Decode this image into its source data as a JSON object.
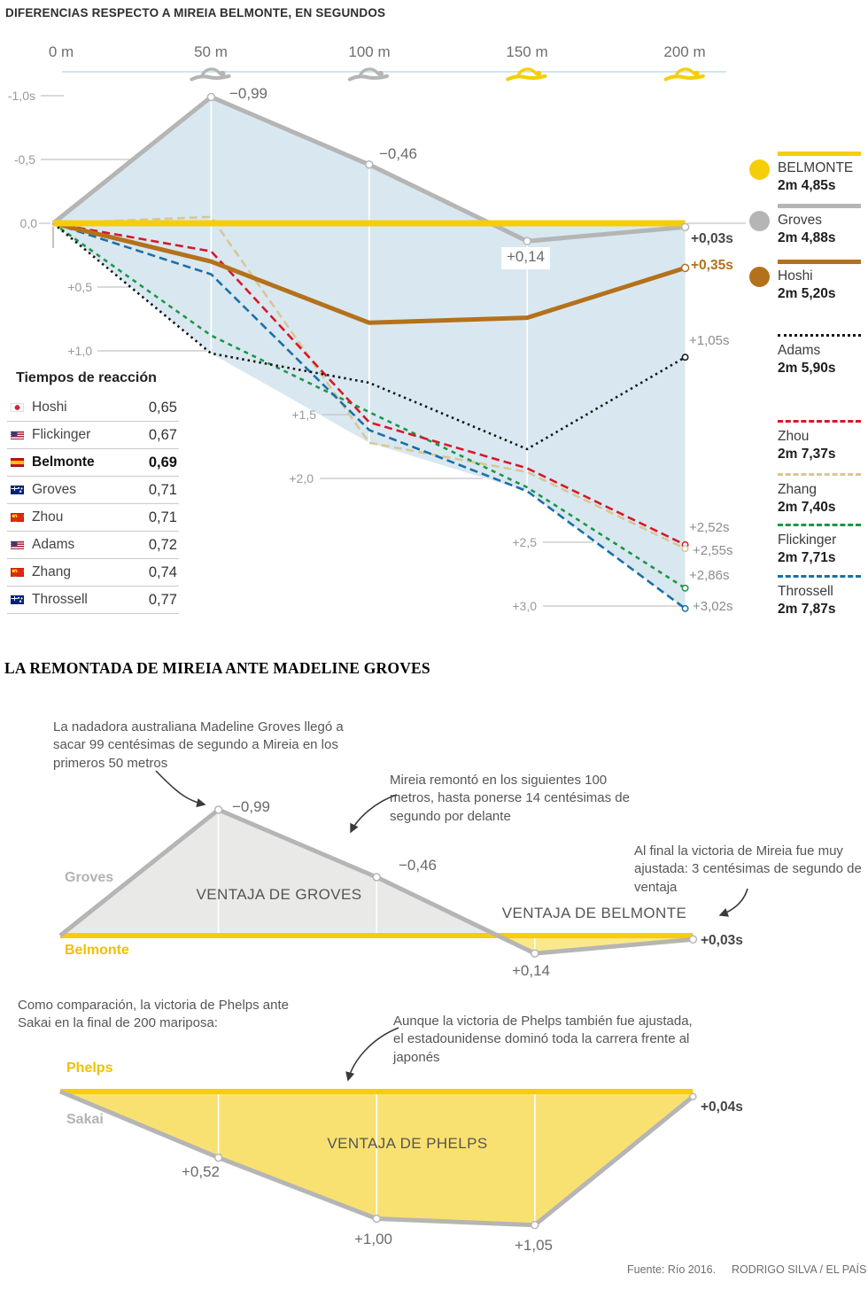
{
  "colors": {
    "yellow": "#f5ce0b",
    "gray": "#b5b5b5",
    "brown": "#b4711c",
    "black": "#161616",
    "red": "#d7182a",
    "tan": "#d8c795",
    "green": "#1e9648",
    "blue": "#1a6fa8",
    "area_blue": "#d9e8f0",
    "area_gray": "#e9e9e7",
    "area_yellow_light": "#fbe88d",
    "area_yellow": "#f9e171",
    "waterline": "#cfe4ee",
    "axis_gray": "#c3c3c3",
    "grid_white": "#ffffff",
    "arrow": "#3a3a3a"
  },
  "icons": {
    "swimmer_gray_positions": [
      "50 m",
      "100 m"
    ],
    "swimmer_yellow_positions": [
      "150 m",
      "200 m"
    ]
  },
  "chart_data": [
    {
      "type": "line",
      "title": "DIFERENCIAS RESPECTO A MIREIA BELMONTE, EN SEGUNDOS",
      "x_labels": [
        "0 m",
        "50 m",
        "100 m",
        "150 m",
        "200 m"
      ],
      "x_values_m": [
        0,
        50,
        100,
        150,
        200
      ],
      "y_unit": "segundos respecto a Belmonte (negativo = por delante)",
      "ylim": [
        -1.0,
        3.0
      ],
      "y_ticks": [
        {
          "v": -1.0,
          "label": "-1,0s"
        },
        {
          "v": -0.5,
          "label": "-0,5"
        },
        {
          "v": 0.0,
          "label": "0,0"
        },
        {
          "v": 0.5,
          "label": "+0,5"
        },
        {
          "v": 1.0,
          "label": "+1,0"
        },
        {
          "v": 1.5,
          "label": "+1,5"
        },
        {
          "v": 2.0,
          "label": "+2,0"
        },
        {
          "v": 2.5,
          "label": "+2,5"
        },
        {
          "v": 3.0,
          "label": "+3,0"
        }
      ],
      "series": [
        {
          "name": "Belmonte",
          "legend_name": "BELMONTE",
          "final_time": "2m 4,85s",
          "color": "#f5ce0b",
          "line": "solid-thick",
          "swatch": "bar",
          "values": [
            0,
            0,
            0,
            0,
            0
          ],
          "end_label": ""
        },
        {
          "name": "Groves",
          "legend_name": "Groves",
          "final_time": "2m 4,88s",
          "color": "#b5b5b5",
          "line": "solid",
          "swatch": "bar",
          "values": [
            0,
            -0.99,
            -0.46,
            0.14,
            0.03
          ],
          "end_label": "+0,03s",
          "point_labels": [
            "",
            "−0,99",
            "−0,46",
            "+0,14",
            ""
          ]
        },
        {
          "name": "Hoshi",
          "legend_name": "Hoshi",
          "final_time": "2m 5,20s",
          "color": "#b4711c",
          "line": "solid",
          "swatch": "bar",
          "values": [
            0,
            0.3,
            0.78,
            0.74,
            0.35
          ],
          "end_label": "+0,35s"
        },
        {
          "name": "Adams",
          "legend_name": "Adams",
          "final_time": "2m 5,90s",
          "color": "#161616",
          "line": "dotted",
          "swatch": "dot",
          "values": [
            0,
            1.02,
            1.25,
            1.77,
            1.05
          ],
          "end_label": "+1,05s"
        },
        {
          "name": "Zhou",
          "legend_name": "Zhou",
          "final_time": "2m 7,37s",
          "color": "#d7182a",
          "line": "dashed",
          "swatch": "dash",
          "values": [
            0,
            0.22,
            1.56,
            1.92,
            2.52
          ],
          "end_label": "+2,52s"
        },
        {
          "name": "Zhang",
          "legend_name": "Zhang",
          "final_time": "2m 7,40s",
          "color": "#d8c795",
          "line": "dashed",
          "swatch": "dash",
          "values": [
            0,
            -0.05,
            1.72,
            1.95,
            2.55
          ],
          "end_label": "+2,55s"
        },
        {
          "name": "Flickinger",
          "legend_name": "Flickinger",
          "final_time": "2m 7,71s",
          "color": "#1e9648",
          "line": "dashed",
          "swatch": "dash",
          "values": [
            0,
            0.88,
            1.48,
            2.07,
            2.86
          ],
          "end_label": "+2,86s"
        },
        {
          "name": "Throssell",
          "legend_name": "Throssell",
          "final_time": "2m 7,87s",
          "color": "#1a6fa8",
          "line": "dashed",
          "swatch": "dash",
          "values": [
            0,
            0.4,
            1.62,
            2.1,
            3.02
          ],
          "end_label": "+3,02s"
        }
      ]
    },
    {
      "type": "area-line",
      "title": "LA REMONTADA DE MIREIA ANTE MADELINE GROVES",
      "x_values_m": [
        0,
        50,
        100,
        150,
        200
      ],
      "series": [
        {
          "name": "Belmonte",
          "color": "#f5ce0b",
          "values": [
            0,
            0,
            0,
            0,
            0
          ]
        },
        {
          "name": "Groves",
          "color": "#b5b5b5",
          "values": [
            0,
            -0.99,
            -0.46,
            0.14,
            0.03
          ],
          "point_labels": [
            "",
            "−0,99",
            "−0,46",
            "+0,14",
            ""
          ],
          "end_label": "+0,03s"
        }
      ],
      "areas": [
        {
          "label": "VENTAJA DE GROVES",
          "color": "#e9e9e7"
        },
        {
          "label": "VENTAJA DE BELMONTE",
          "color": "#fbe88d"
        }
      ]
    },
    {
      "type": "area-line",
      "x_values_m": [
        0,
        50,
        100,
        150,
        200
      ],
      "series": [
        {
          "name": "Phelps",
          "color": "#f5ce0b",
          "values": [
            0,
            0,
            0,
            0,
            0
          ]
        },
        {
          "name": "Sakai",
          "color": "#b5b5b5",
          "values": [
            0,
            0.52,
            1.0,
            1.05,
            0.04
          ],
          "point_labels": [
            "",
            "+0,52",
            "+1,00",
            "+1,05",
            ""
          ],
          "end_label": "+0,04s"
        }
      ],
      "areas": [
        {
          "label": "VENTAJA DE PHELPS",
          "color": "#f9e171"
        }
      ]
    }
  ],
  "reaction_table": {
    "title": "Tiempos de reacción",
    "rows": [
      {
        "flag": "jp",
        "name": "Hoshi",
        "value": "0,65",
        "bold": "false"
      },
      {
        "flag": "us",
        "name": "Flickinger",
        "value": "0,67",
        "bold": "false"
      },
      {
        "flag": "es",
        "name": "Belmonte",
        "value": "0,69",
        "bold": "true"
      },
      {
        "flag": "au",
        "name": "Groves",
        "value": "0,71",
        "bold": "false"
      },
      {
        "flag": "cn",
        "name": "Zhou",
        "value": "0,71",
        "bold": "false"
      },
      {
        "flag": "us",
        "name": "Adams",
        "value": "0,72",
        "bold": "false"
      },
      {
        "flag": "cn",
        "name": "Zhang",
        "value": "0,74",
        "bold": "false"
      },
      {
        "flag": "au",
        "name": "Throssell",
        "value": "0,77",
        "bold": "false"
      }
    ]
  },
  "middle": {
    "heading": "LA REMONTADA DE MIREIA ANTE MADELINE GROVES",
    "annotation_groves": "La nadadora australiana Madeline Groves llegó a sacar 99 centésimas de segundo a Mireia en los primeros 50 metros",
    "annotation_remontada": "Mireia remontó en los siguientes 100 metros, hasta ponerse 14 centésimas de segundo por delante",
    "annotation_final": "Al final la victoria de Mireia fue muy ajustada: 3 centésimas de segundo de ventaja",
    "groves_label": "Groves",
    "belmonte_label": "Belmonte"
  },
  "bottom": {
    "intro": "Como comparación, la victoria de Phelps ante Sakai en la final de 200 mariposa:",
    "annotation": "Aunque la victoria de Phelps también fue ajustada, el estadounidense dominó toda la carrera frente al japonés",
    "phelps_label": "Phelps",
    "sakai_label": "Sakai"
  },
  "footer": {
    "source": "Fuente: Río 2016.",
    "credit": "RODRIGO SILVA / EL PAÍS"
  }
}
